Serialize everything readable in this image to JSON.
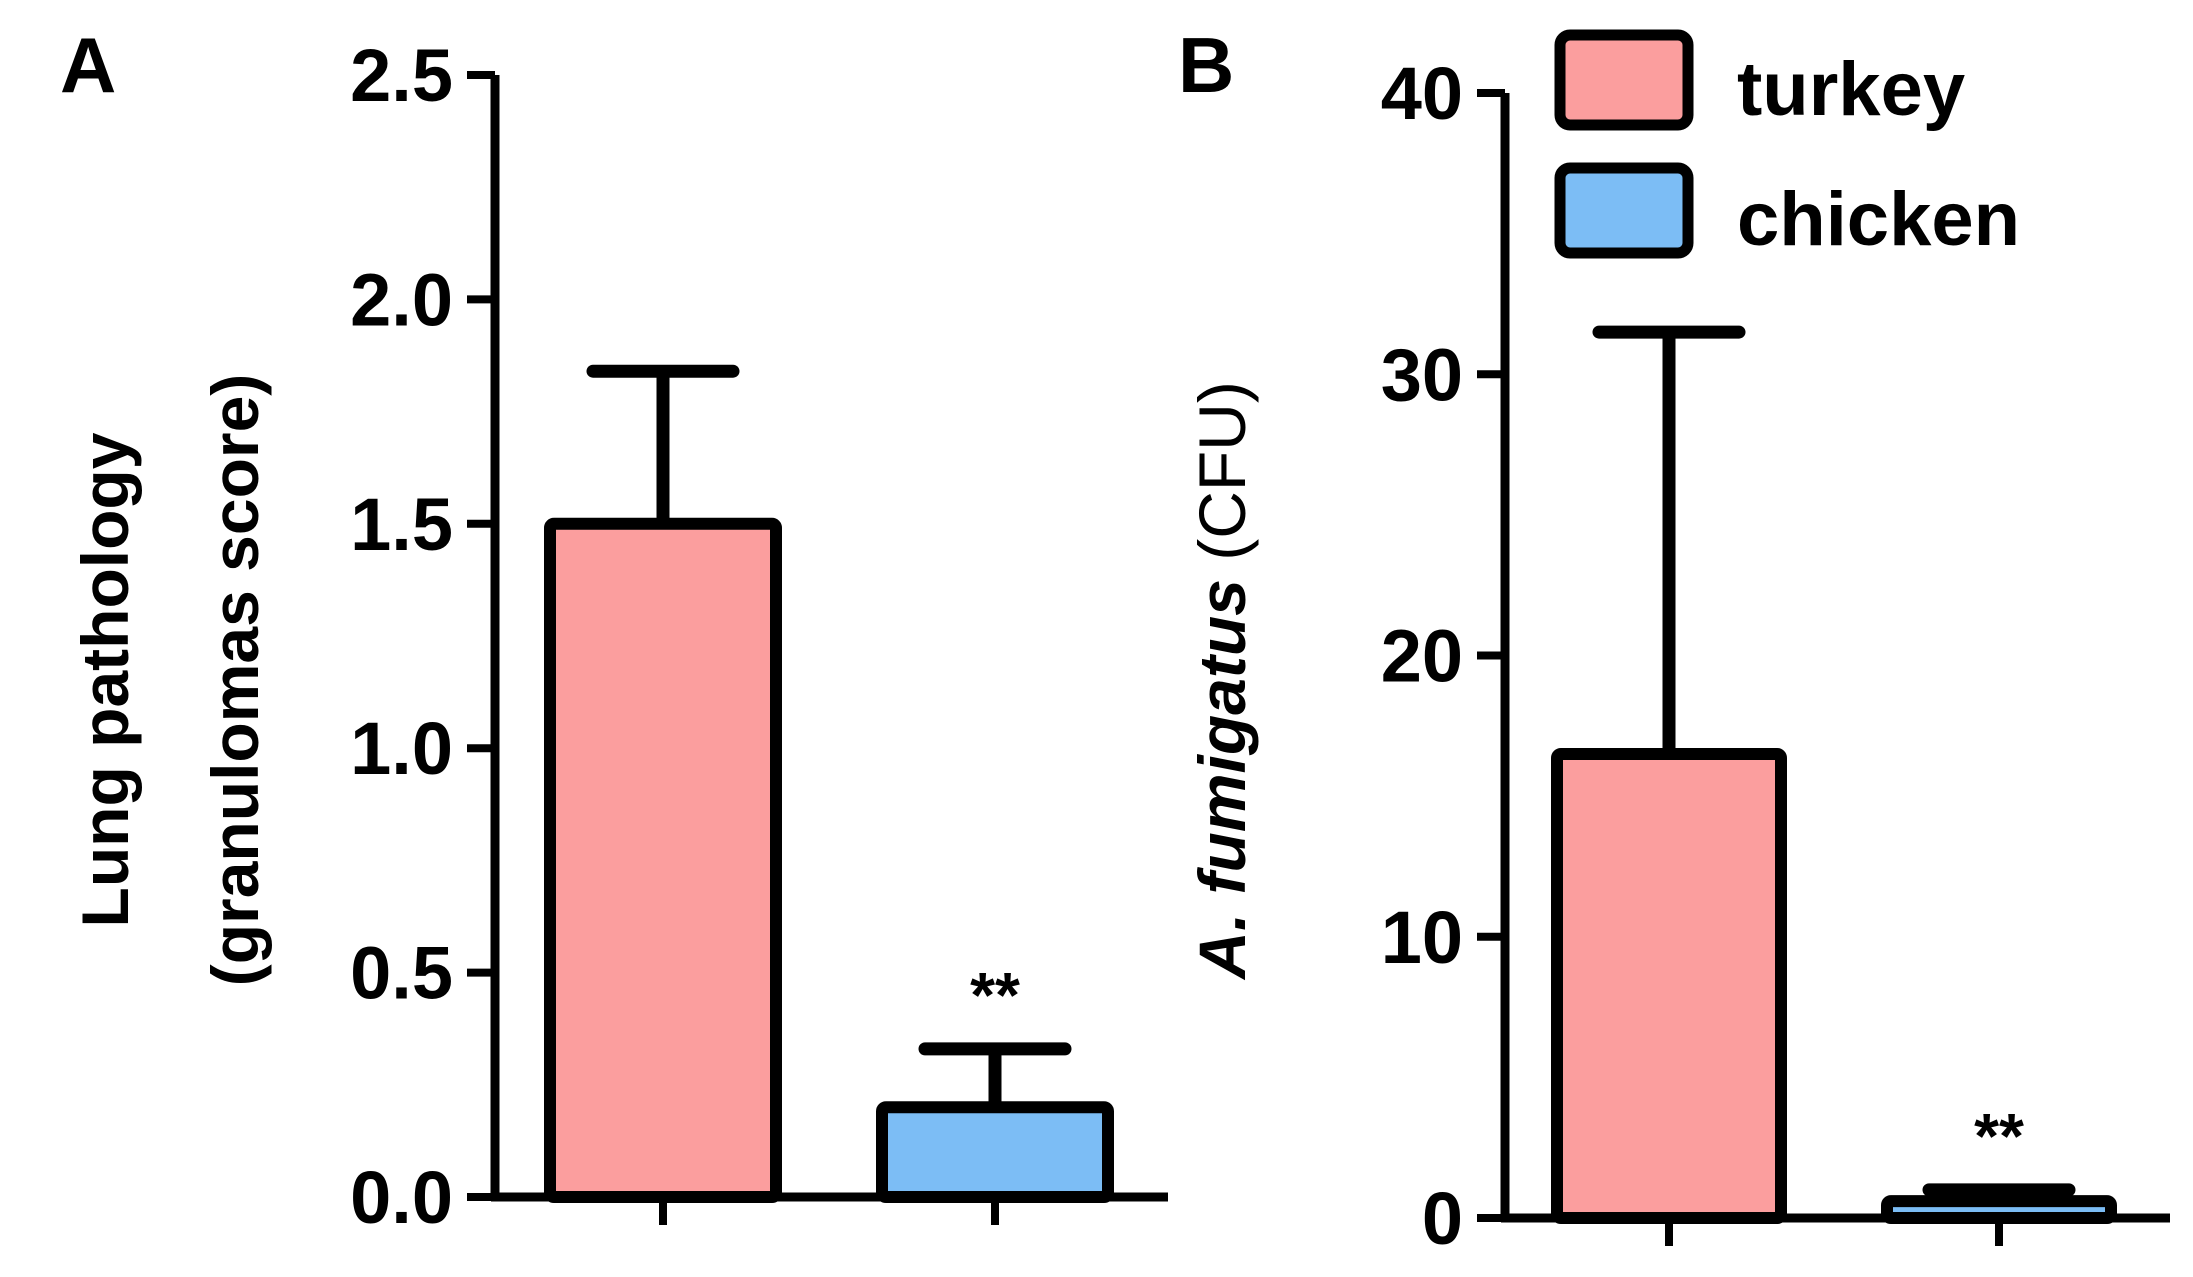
{
  "colors": {
    "turkey": "#fb9e9e",
    "chicken": "#7cbdf5",
    "stroke": "#000000"
  },
  "legend": {
    "items": [
      {
        "label": "turkey",
        "color": "#fb9e9e"
      },
      {
        "label": "chicken",
        "color": "#7cbdf5"
      }
    ]
  },
  "chart_data": [
    {
      "panel": "A",
      "type": "bar",
      "categories": [
        "turkey",
        "chicken"
      ],
      "values": [
        1.5,
        0.2
      ],
      "error_upper": [
        1.84,
        0.33
      ],
      "significance": [
        "",
        "**"
      ],
      "ylabel_line1": "Lung pathology",
      "ylabel_line2": "(granulomas score)",
      "ylim": [
        0,
        2.5
      ],
      "yticks": [
        0.0,
        0.5,
        1.0,
        1.5,
        2.0,
        2.5
      ],
      "ytick_labels": [
        "0.0",
        "0.5",
        "1.0",
        "1.5",
        "2.0",
        "2.5"
      ]
    },
    {
      "panel": "B",
      "type": "bar",
      "categories": [
        "turkey",
        "chicken"
      ],
      "values": [
        16.5,
        0.6
      ],
      "error_upper": [
        31.5,
        1.0
      ],
      "significance": [
        "",
        "**"
      ],
      "ylabel_italic": "A. fumigatus",
      "ylabel_plain": " (CFU)",
      "ylim": [
        0,
        40
      ],
      "yticks": [
        0,
        10,
        20,
        30,
        40
      ],
      "ytick_labels": [
        "0",
        "10",
        "20",
        "30",
        "40"
      ]
    }
  ]
}
